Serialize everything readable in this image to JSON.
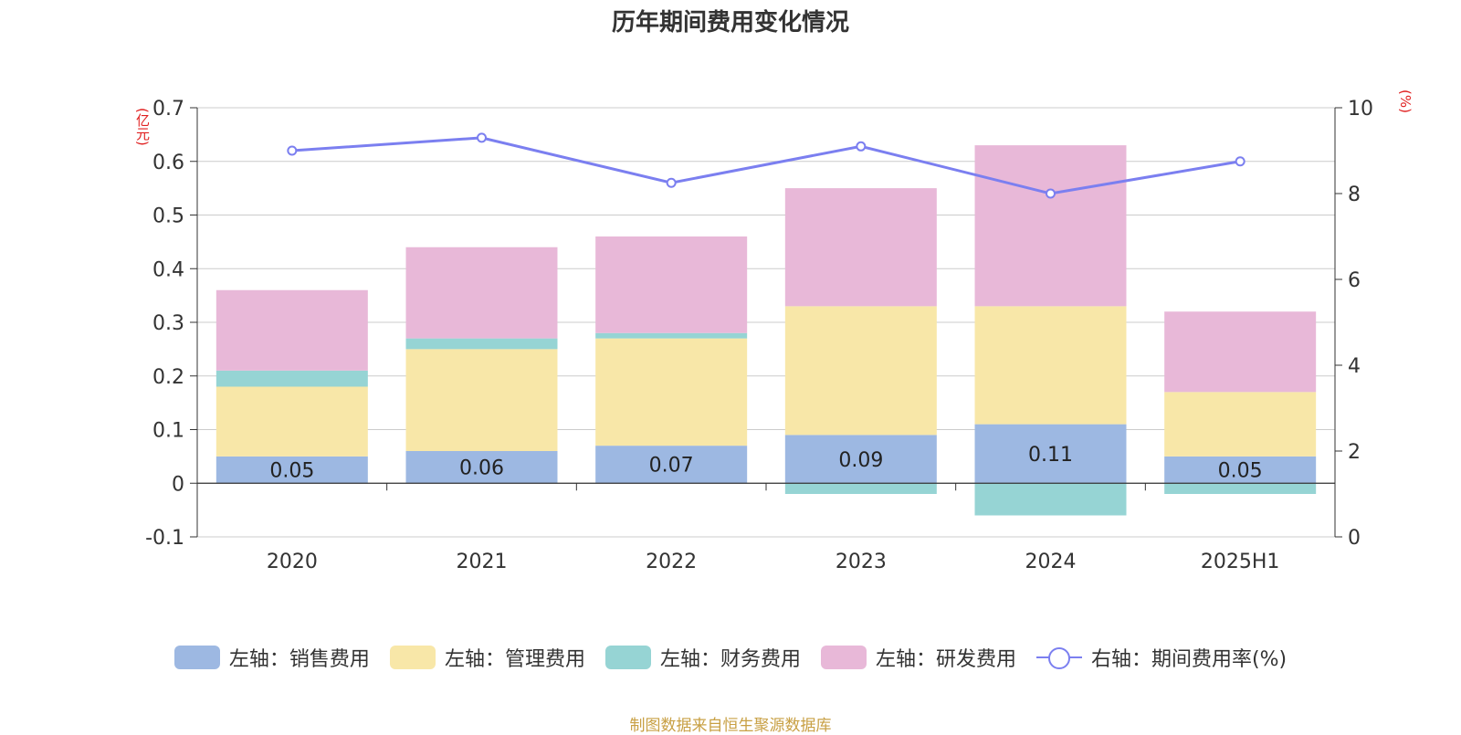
{
  "title": "历年期间费用变化情况",
  "source": "制图数据来自恒生聚源数据库",
  "chart_data": {
    "type": "bar",
    "stacked": true,
    "categories": [
      "2020",
      "2021",
      "2022",
      "2023",
      "2024",
      "2025H1"
    ],
    "y_left": {
      "unit": "(亿元)",
      "ylim": [
        -0.1,
        0.7
      ],
      "ticks": [
        0.7,
        0.6,
        0.5,
        0.4,
        0.3,
        0.2,
        0.1,
        0,
        -0.1
      ]
    },
    "y_right": {
      "unit": "(%)",
      "ylim": [
        0,
        10
      ],
      "ticks": [
        10,
        8,
        6,
        4,
        2,
        0
      ]
    },
    "grid": true,
    "legend_position": "bottom",
    "series": [
      {
        "name": "左轴：销售费用",
        "axis": "left",
        "color": "#9db8e2",
        "values": [
          0.05,
          0.06,
          0.07,
          0.09,
          0.11,
          0.05
        ],
        "data_labels": [
          "0.05",
          "0.06",
          "0.07",
          "0.09",
          "0.11",
          "0.05"
        ]
      },
      {
        "name": "左轴：管理费用",
        "axis": "left",
        "color": "#f8e7a8",
        "values": [
          0.13,
          0.19,
          0.2,
          0.24,
          0.22,
          0.12
        ]
      },
      {
        "name": "左轴：财务费用",
        "axis": "left",
        "color": "#96d4d4",
        "values": [
          0.03,
          0.02,
          0.01,
          -0.02,
          -0.06,
          -0.02
        ]
      },
      {
        "name": "左轴：研发费用",
        "axis": "left",
        "color": "#e8b8d8",
        "values": [
          0.15,
          0.17,
          0.18,
          0.22,
          0.3,
          0.15
        ]
      },
      {
        "name": "右轴：期间费用率(%)",
        "axis": "right",
        "type": "line",
        "color": "#7b7ff0",
        "values": [
          9.0,
          9.3,
          8.25,
          9.1,
          8.0,
          8.75
        ]
      }
    ]
  }
}
